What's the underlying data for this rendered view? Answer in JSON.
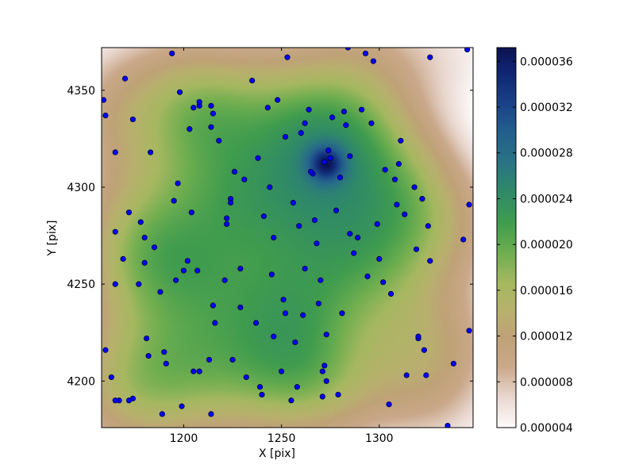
{
  "chart_data": {
    "type": "heatmap",
    "title": "",
    "xlabel": "X [pix]",
    "ylabel": "Y [pix]",
    "xlim": [
      1158,
      1348
    ],
    "ylim": [
      4176,
      4372
    ],
    "xticks": [
      "1200",
      "1250",
      "1300"
    ],
    "xtick_values": [
      1200,
      1250,
      1300
    ],
    "yticks": [
      "4200",
      "4250",
      "4300",
      "4350"
    ],
    "ytick_values": [
      4200,
      4250,
      4300,
      4350
    ],
    "colorbar": {
      "range": [
        4e-06,
        3.72e-05
      ],
      "ticks": [
        "0.000004",
        "0.000008",
        "0.000012",
        "0.000016",
        "0.000020",
        "0.000024",
        "0.000028",
        "0.000032",
        "0.000036"
      ],
      "tick_values": [
        4e-06,
        8e-06,
        1.2e-05,
        1.6e-05,
        2e-05,
        2.4e-05,
        2.8e-05,
        3.2e-05,
        3.6e-05
      ],
      "colormap": "gist_earth_r"
    },
    "density_peaks": [
      {
        "x": 1273,
        "y": 4312,
        "value": 3.72e-05
      }
    ],
    "points": {
      "marker_color": "#0000ff",
      "x": [
        1160,
        1159,
        1160,
        1165,
        1169,
        1170,
        1165,
        1165,
        1163,
        1167,
        1174,
        1174,
        1172,
        1177,
        1178,
        1180,
        1180,
        1181,
        1182,
        1183,
        1185,
        1188,
        1189,
        1190,
        1191,
        1194,
        1195,
        1197,
        1196,
        1198,
        1199,
        1200,
        1202,
        1203,
        1204,
        1205,
        1205,
        1207,
        1208,
        1208,
        1213,
        1214,
        1214,
        1215,
        1216,
        1214,
        1218,
        1215,
        1222,
        1221,
        1222,
        1224,
        1224,
        1225,
        1226,
        1229,
        1229,
        1231,
        1232,
        1235,
        1237,
        1238,
        1239,
        1240,
        1241,
        1243,
        1244,
        1245,
        1246,
        1246,
        1248,
        1250,
        1251,
        1252,
        1252,
        1253,
        1255,
        1256,
        1257,
        1258,
        1259,
        1260,
        1261,
        1262,
        1264,
        1266,
        1265,
        1267,
        1268,
        1269,
        1270,
        1271,
        1272,
        1272,
        1273,
        1273,
        1274,
        1275,
        1276,
        1278,
        1279,
        1280,
        1281,
        1282,
        1283,
        1284,
        1285,
        1285,
        1287,
        1289,
        1291,
        1293,
        1294,
        1296,
        1297,
        1299,
        1300,
        1302,
        1303,
        1305,
        1306,
        1308,
        1309,
        1310,
        1311,
        1313,
        1314,
        1318,
        1319,
        1320,
        1320,
        1322,
        1323,
        1324,
        1325,
        1326,
        1335,
        1338,
        1343,
        1345,
        1346,
        1346,
        1165,
        1172,
        1208,
        1271,
        1262,
        1326
      ],
      "y": [
        4216,
        4345,
        4337,
        4250,
        4263,
        4356,
        4318,
        4277,
        4202,
        4190,
        4335,
        4191,
        4287,
        4250,
        4282,
        4274,
        4261,
        4222,
        4213,
        4318,
        4269,
        4246,
        4183,
        4215,
        4209,
        4369,
        4293,
        4302,
        4252,
        4349,
        4187,
        4257,
        4262,
        4330,
        4287,
        4205,
        4341,
        4257,
        4342,
        4205,
        4211,
        4331,
        4342,
        4338,
        4230,
        4183,
        4324,
        4239,
        4284,
        4252,
        4281,
        4294,
        4292,
        4211,
        4308,
        4238,
        4258,
        4304,
        4202,
        4355,
        4230,
        4315,
        4197,
        4193,
        4285,
        4341,
        4300,
        4255,
        4274,
        4223,
        4345,
        4205,
        4242,
        4235,
        4326,
        4367,
        4190,
        4292,
        4220,
        4197,
        4280,
        4328,
        4234,
        4258,
        4340,
        4307,
        4308,
        4283,
        4271,
        4240,
        4252,
        4192,
        4208,
        4313,
        4224,
        4200,
        4319,
        4315,
        4336,
        4288,
        4193,
        4305,
        4235,
        4339,
        4332,
        4372,
        4276,
        4316,
        4266,
        4274,
        4340,
        4369,
        4254,
        4333,
        4365,
        4281,
        4263,
        4251,
        4309,
        4188,
        4245,
        4304,
        4291,
        4312,
        4324,
        4286,
        4203,
        4300,
        4268,
        4222,
        4223,
        4294,
        4216,
        4203,
        4280,
        4367,
        4177,
        4209,
        4273,
        4371,
        4291,
        4226,
        4190,
        4190,
        4344,
        4205,
        4333,
        4262
      ]
    }
  }
}
